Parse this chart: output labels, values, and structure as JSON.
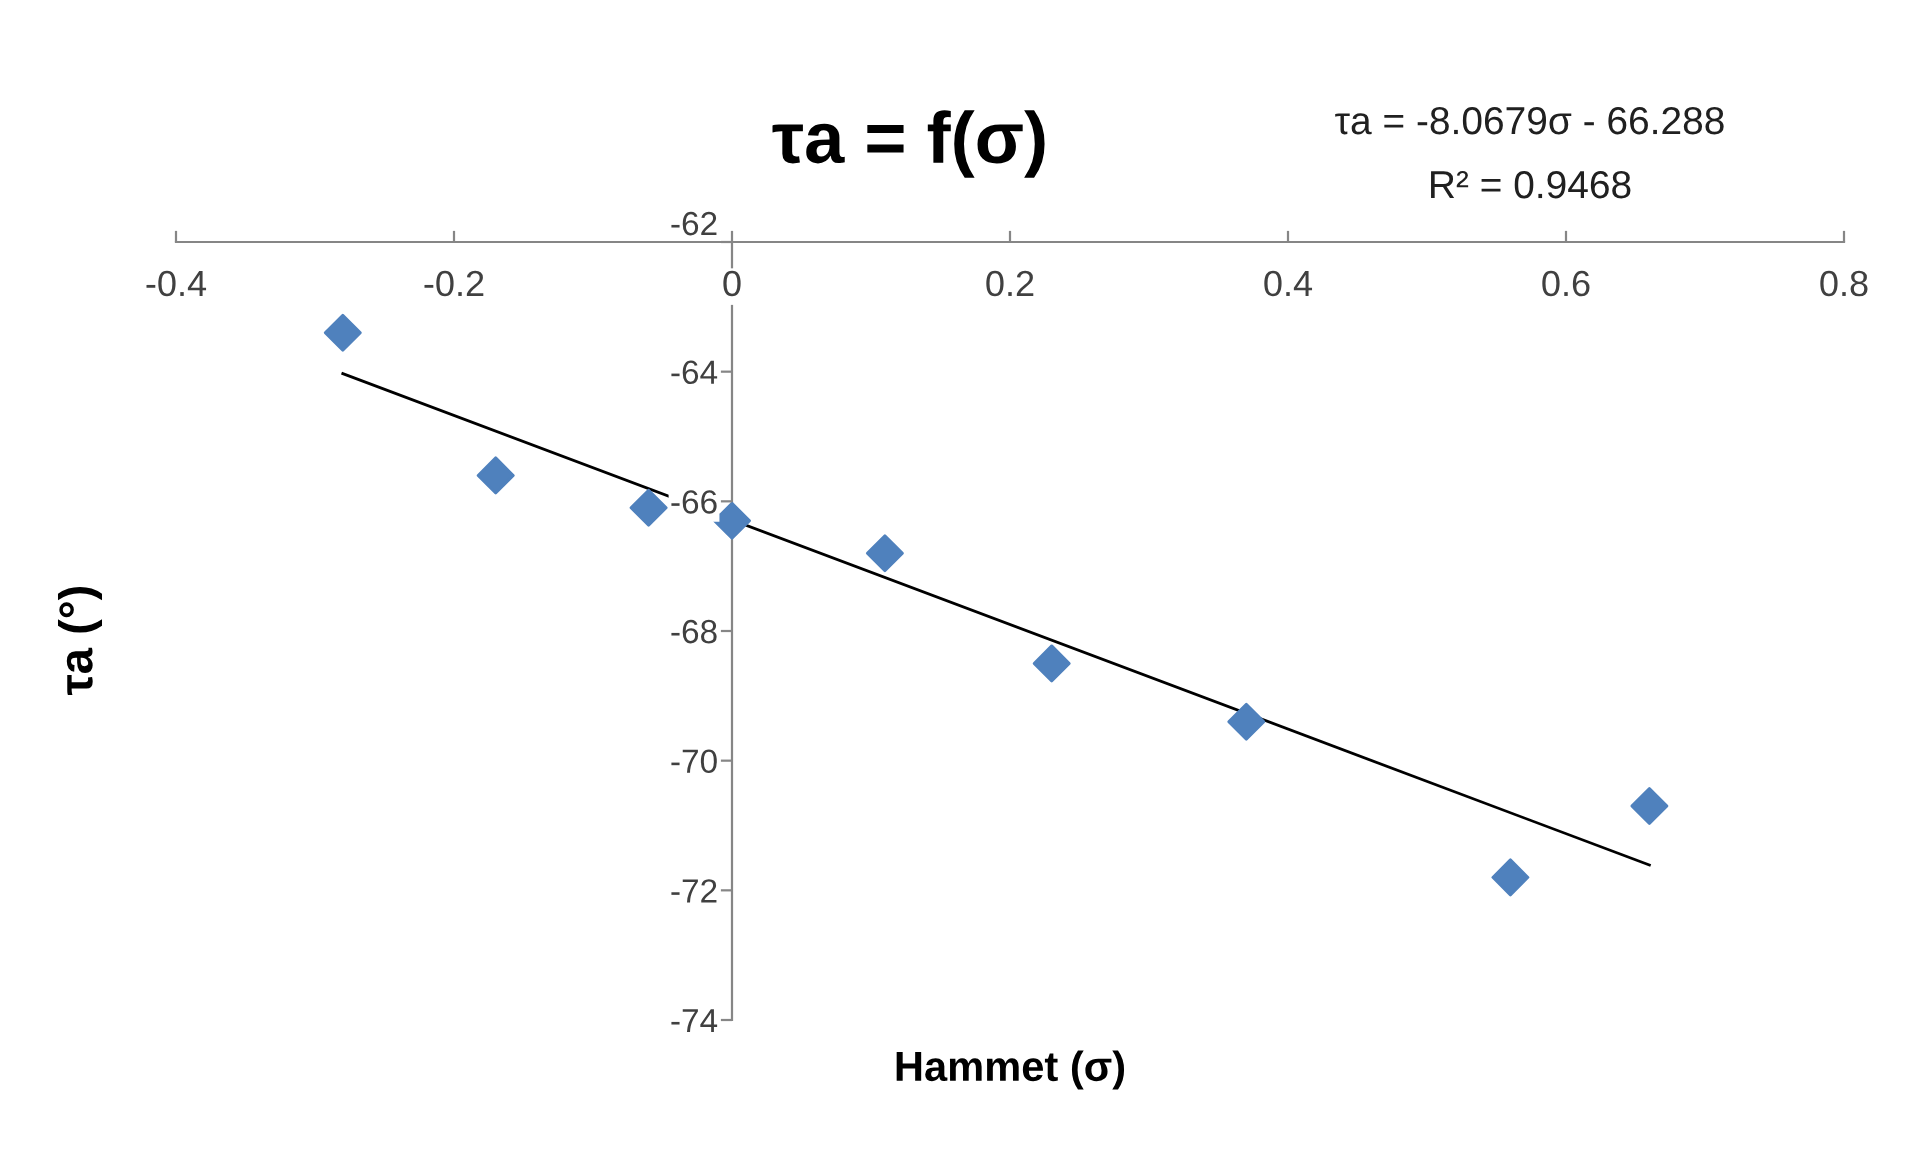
{
  "chart_data": {
    "type": "scatter",
    "title": "τa = f(σ)",
    "xlabel": "Hammet (σ)",
    "ylabel": "τa (°)",
    "annotations": [
      "τa = -8.0679σ - 66.288",
      "R² = 0.9468"
    ],
    "series": [
      {
        "color": "#4f81bd",
        "marker": "diamond",
        "x": [
          -0.28,
          -0.17,
          -0.06,
          0,
          0.11,
          0.23,
          0.37,
          0.56,
          0.66
        ],
        "values": [
          -63.4,
          -65.6,
          -66.1,
          -66.3,
          -66.8,
          -68.5,
          -69.4,
          -71.8,
          -70.7
        ]
      },
      {
        "type": "line",
        "color": "#000000",
        "marker": "none",
        "line_style": "solid",
        "x": [
          -0.28,
          0.66
        ],
        "values": [
          -64.03,
          -71.61
        ]
      }
    ],
    "xlim": [
      -0.4,
      0.8
    ],
    "xticks": [
      -0.4,
      -0.2,
      0,
      0.2,
      0.4,
      0.6,
      0.8
    ],
    "ylim": [
      -74,
      -62
    ],
    "yticks": [
      -74,
      -72,
      -70,
      -68,
      -66,
      -64,
      -62
    ],
    "grid": false
  }
}
